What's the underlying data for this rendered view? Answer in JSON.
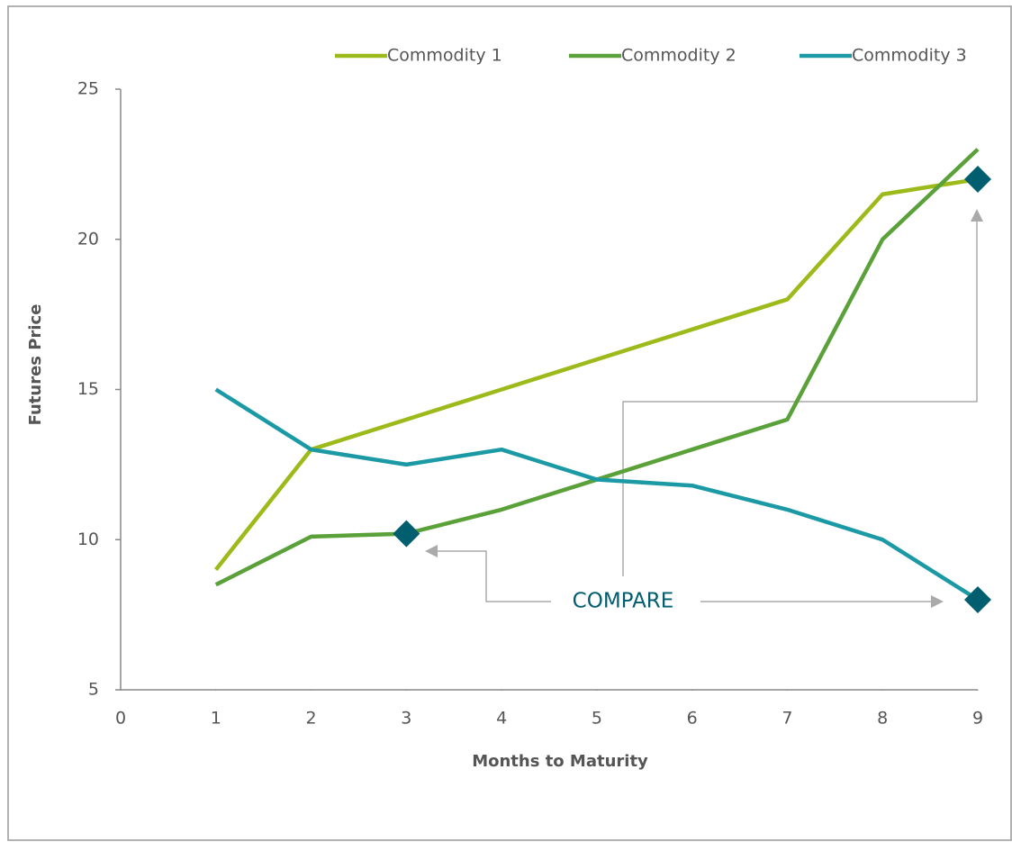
{
  "chart_data": {
    "type": "line",
    "x_label": "Months to Maturity",
    "y_label": "Futures Price",
    "x": [
      1,
      2,
      3,
      4,
      5,
      6,
      7,
      8,
      9
    ],
    "series": [
      {
        "name": "Commodity 1",
        "color": "#9cba1a",
        "values": [
          9,
          13,
          14,
          15,
          16,
          17,
          18,
          21.5,
          22
        ]
      },
      {
        "name": "Commodity 2",
        "color": "#5aa13a",
        "values": [
          8.5,
          10.1,
          10.2,
          11,
          12,
          13,
          14,
          20,
          23
        ]
      },
      {
        "name": "Commodity 3",
        "color": "#1b9aa6",
        "values": [
          15,
          13,
          12.5,
          13,
          12,
          11.8,
          11,
          10,
          8
        ]
      }
    ],
    "xlim": [
      0,
      9
    ],
    "xticks": [
      0,
      1,
      2,
      3,
      4,
      5,
      6,
      7,
      8,
      9
    ],
    "ylim": [
      5,
      25
    ],
    "yticks": [
      5,
      10,
      15,
      20,
      25
    ],
    "grid": false,
    "legend": "top",
    "annotation": {
      "text": "COMPARE",
      "color": "#005e6e",
      "points": [
        {
          "series": 1,
          "index": 2
        },
        {
          "series": 0,
          "index": 8
        },
        {
          "series": 2,
          "index": 8
        }
      ]
    }
  }
}
